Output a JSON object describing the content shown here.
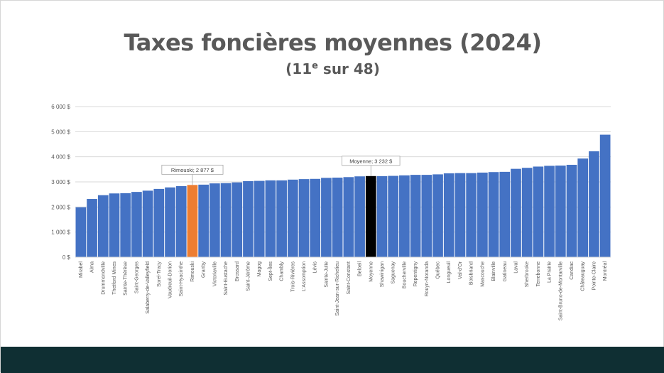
{
  "title": "Taxes foncières moyennes (2024)",
  "subtitle": {
    "pre": "(11",
    "sup": "e",
    "post": " sur 48)"
  },
  "colors": {
    "bar": "#4472C4",
    "highlight": "#ED7D31",
    "average": "#000000",
    "grid": "#D9D9D9",
    "text": "#595959",
    "footer": "#0F2F33"
  },
  "chart_data": {
    "type": "bar",
    "categories": [
      "Mirabel",
      "Alma",
      "Drummondville",
      "Thetford Mines",
      "Sainte-Thérèse",
      "Saint-Georges",
      "Salaberry-de-Valleyfield",
      "Sorel-Tracy",
      "Vaudreuil-Dorion",
      "Saint-Hyacinthe",
      "Rimouski",
      "Granby",
      "Victoriaville",
      "Saint-Eustache",
      "Brossard",
      "Saint-Jérôme",
      "Magog",
      "Sept-Îles",
      "Chambly",
      "Trois-Rivières",
      "L'Assomption",
      "Lévis",
      "Sainte-Julie",
      "Saint-Jean-sur-Richelieu",
      "Saint-Constant",
      "Beloeil",
      "Moyenne",
      "Shawinigan",
      "Saguenay",
      "Boucherville",
      "Repentigny",
      "Rouyn-Noranda",
      "Québec",
      "Longueuil",
      "Val-d'Or",
      "Boisbriand",
      "Mascouche",
      "Blainville",
      "Gatineau",
      "Laval",
      "Sherbrooke",
      "Terrebonne",
      "La Prairie",
      "Saint-Bruno-de-Montarville",
      "Candiac",
      "Châteauguay",
      "Pointe-Claire",
      "Montréal"
    ],
    "values": [
      1990,
      2320,
      2470,
      2540,
      2550,
      2600,
      2650,
      2720,
      2780,
      2830,
      2877,
      2890,
      2940,
      2950,
      2980,
      3030,
      3040,
      3060,
      3060,
      3090,
      3110,
      3120,
      3160,
      3170,
      3190,
      3220,
      3232,
      3230,
      3240,
      3260,
      3280,
      3280,
      3300,
      3340,
      3350,
      3350,
      3370,
      3390,
      3400,
      3520,
      3560,
      3610,
      3640,
      3650,
      3680,
      3930,
      4220,
      4880
    ],
    "highlight_index": 10,
    "average_index": 26,
    "annotations": [
      "Rimouski; 2 877 $",
      "Moyenne; 3 232 $"
    ],
    "y_ticks": [
      "0 $",
      "1 000 $",
      "2 000 $",
      "3 000 $",
      "4 000 $",
      "5 000 $",
      "6 000 $"
    ],
    "ylim": [
      0,
      6000
    ],
    "grid": true,
    "legend": "none"
  }
}
